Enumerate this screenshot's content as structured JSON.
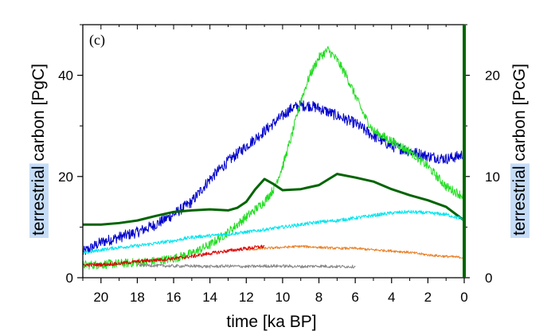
{
  "chart_data": {
    "type": "line",
    "panel_label": "(c)",
    "xlabel": "time [ka BP]",
    "ylabel_left_highlight": "terrestrial",
    "ylabel_left_rest": " carbon [PgC]",
    "ylabel_right_highlight": "terrestrial",
    "ylabel_right_rest": " carbon [PcG]",
    "xlim": [
      21,
      0
    ],
    "ylim_left": [
      0,
      50
    ],
    "ylim_right": [
      0,
      25
    ],
    "x_ticks": [
      20,
      18,
      16,
      14,
      12,
      10,
      8,
      6,
      4,
      2,
      0
    ],
    "y_ticks_left": [
      0,
      20,
      40
    ],
    "y_ticks_right": [
      0,
      10,
      20
    ],
    "grid": false,
    "colors": {
      "highlight": "#c5dcf7",
      "right_axis": "#006400"
    },
    "series": [
      {
        "color": "#0000cc",
        "axis": "left",
        "noise": 1.1,
        "x": [
          21,
          20,
          19,
          18,
          17,
          16,
          15,
          14,
          13,
          12,
          11,
          10,
          9.5,
          9,
          8.5,
          8,
          7,
          6,
          5,
          4,
          3,
          2,
          1,
          0.3,
          0
        ],
        "y": [
          5,
          7,
          8,
          9,
          10.5,
          12.5,
          15,
          19.5,
          23,
          26,
          29,
          32,
          33.5,
          34,
          34,
          33.5,
          32,
          30.5,
          28,
          26,
          25,
          24,
          23.5,
          24,
          24.5
        ]
      },
      {
        "color": "#22dd22",
        "axis": "left",
        "noise": 0.9,
        "x": [
          21,
          20,
          19,
          18,
          17,
          16,
          15,
          14,
          13,
          12,
          11,
          10.5,
          10,
          9.5,
          9,
          8.5,
          8,
          7.5,
          7,
          6.5,
          6,
          5.5,
          5,
          4,
          3,
          2,
          1,
          0.5,
          0
        ],
        "y": [
          2.5,
          2.6,
          2.8,
          3,
          3.3,
          3.8,
          4.8,
          6.5,
          9,
          12,
          15,
          17.5,
          22,
          28,
          35,
          40,
          43.5,
          45,
          43,
          40,
          36,
          32,
          29,
          27,
          25,
          22,
          18,
          17,
          16
        ]
      },
      {
        "color": "#006400",
        "axis": "left",
        "noise": 0,
        "width": 3,
        "x": [
          21,
          20,
          19,
          18,
          17,
          16,
          15,
          14,
          13,
          12.5,
          12,
          11.5,
          11,
          10.5,
          10,
          9,
          8,
          7,
          6,
          5,
          4,
          3,
          2,
          1,
          0
        ],
        "y": [
          10.5,
          10.5,
          10.8,
          11.3,
          12.2,
          13,
          13.3,
          13.5,
          13.3,
          13.8,
          15,
          17.5,
          19.5,
          18.5,
          17.3,
          17.5,
          18.3,
          20.5,
          19.8,
          19,
          17.5,
          16.3,
          15.3,
          14,
          11.3
        ]
      },
      {
        "color": "#00e5ee",
        "axis": "left",
        "noise": 0.35,
        "x": [
          21,
          20,
          19,
          18,
          17,
          16,
          15,
          14,
          13,
          12,
          11,
          10,
          9,
          8,
          7,
          6,
          5,
          4,
          3,
          2,
          1,
          0
        ],
        "y": [
          4.8,
          5.5,
          6,
          6.3,
          6.8,
          7.3,
          8,
          8.3,
          8.6,
          9,
          9.5,
          10,
          10.5,
          11,
          11.3,
          11.8,
          12.3,
          12.8,
          13,
          12.8,
          12.5,
          11.5
        ]
      },
      {
        "color": "#e8822b",
        "axis": "left",
        "noise": 0.25,
        "x": [
          12,
          11,
          10,
          9,
          8,
          7,
          6,
          5,
          4,
          3,
          2,
          1,
          0
        ],
        "y": [
          5.5,
          5.8,
          6,
          6.2,
          6,
          5.8,
          5.8,
          5.5,
          5.3,
          5,
          4.5,
          4.2,
          4
        ]
      },
      {
        "color": "#dd0000",
        "axis": "left",
        "noise": 0.35,
        "x": [
          21,
          20,
          19,
          18,
          17,
          16,
          15,
          14,
          13,
          12,
          11
        ],
        "y": [
          2.5,
          2.6,
          2.8,
          3.2,
          3.5,
          3.8,
          4.2,
          4.8,
          5.3,
          5.8,
          6.2
        ]
      },
      {
        "color": "#888888",
        "axis": "left",
        "noise": 0.3,
        "x": [
          18,
          17,
          16,
          15,
          14,
          13,
          12,
          11,
          10,
          9,
          8,
          7,
          6
        ],
        "y": [
          2.5,
          2.4,
          2.3,
          2.3,
          2.2,
          2.3,
          2.2,
          2.3,
          2.3,
          2.2,
          2.3,
          2.2,
          2.2
        ]
      }
    ]
  }
}
